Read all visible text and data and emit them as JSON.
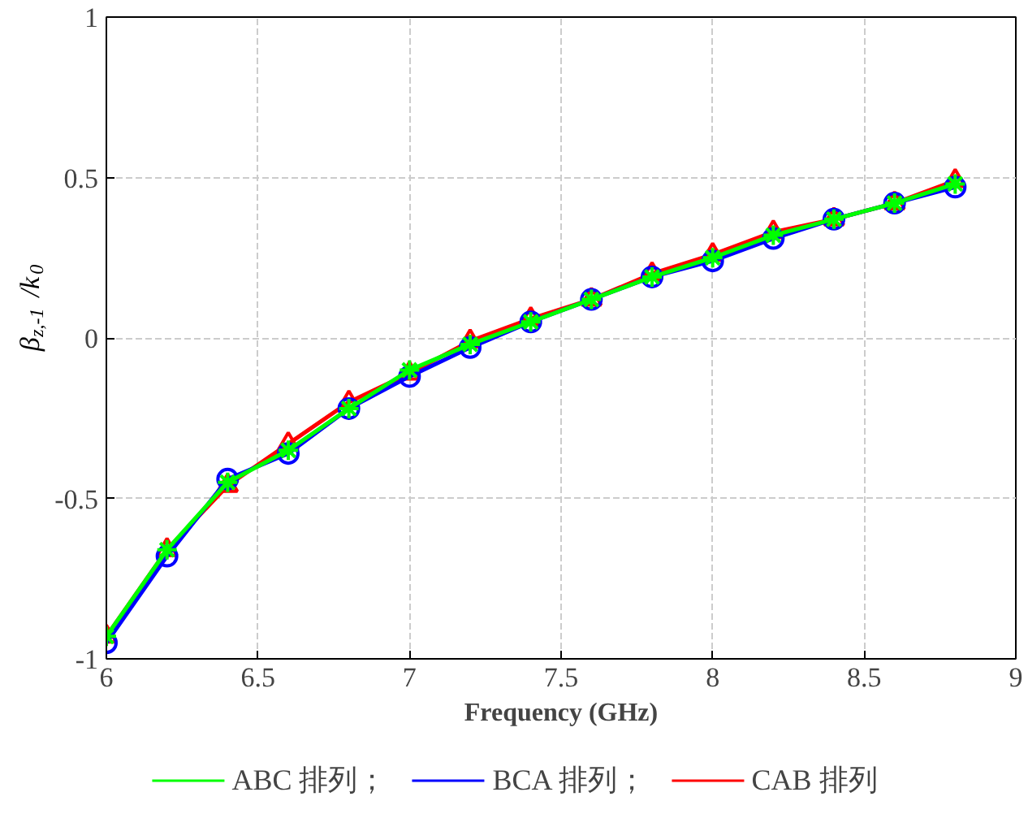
{
  "chart_data": {
    "type": "line",
    "xlabel": "Frequency (GHz)",
    "ylabel": "β$_{z,-1}$ /k$_{0}$",
    "x": [
      6,
      6.2,
      6.4,
      6.6,
      6.8,
      7,
      7.2,
      7.4,
      7.6,
      7.8,
      8,
      8.2,
      8.4,
      8.6,
      8.8
    ],
    "series": [
      {
        "name": "ABC 排列；",
        "color": "#00ff00",
        "marker": "cross",
        "values": [
          -0.93,
          -0.66,
          -0.45,
          -0.35,
          -0.22,
          -0.1,
          -0.02,
          0.05,
          0.12,
          0.19,
          0.25,
          0.32,
          0.37,
          0.42,
          0.48
        ]
      },
      {
        "name": "BCA 排列；",
        "color": "#0000ff",
        "marker": "circle",
        "values": [
          -0.95,
          -0.68,
          -0.44,
          -0.36,
          -0.22,
          -0.12,
          -0.03,
          0.05,
          0.12,
          0.19,
          0.24,
          0.31,
          0.37,
          0.42,
          0.47
        ]
      },
      {
        "name": "CAB 排列",
        "color": "#ff0000",
        "marker": "triangle",
        "values": [
          -0.93,
          -0.66,
          -0.46,
          -0.33,
          -0.2,
          -0.11,
          -0.01,
          0.06,
          0.12,
          0.2,
          0.26,
          0.33,
          0.37,
          0.42,
          0.49
        ]
      }
    ],
    "xlim": [
      6,
      9
    ],
    "ylim": [
      -1,
      1
    ],
    "xticks": [
      6,
      6.5,
      7,
      7.5,
      8,
      8.5,
      9
    ],
    "yticks": [
      -1,
      -0.5,
      0,
      0.5,
      1
    ],
    "grid": true,
    "legend": "bottom",
    "line_style": "solid"
  }
}
